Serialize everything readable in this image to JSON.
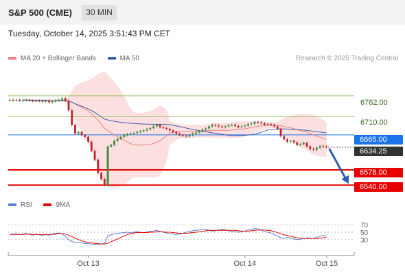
{
  "header": {
    "title": "S&P 500 (CME)",
    "timeframe_label": "30 MIN"
  },
  "timestamp": "Tuesday, October 14, 2025 3:51:43 PM CET",
  "legend": {
    "bollinger_label": "MA 20 + Bollinger Bands",
    "ma50_label": "MA 50",
    "credit": "Research © 2025 Trading Central"
  },
  "colors": {
    "bollinger": "#f08080",
    "band_fill": "#fbd9d9",
    "ma50": "#3b5ea8",
    "resistance": "#9bc46a",
    "support": "#e60000",
    "pivot": "#1a73e8",
    "current": "#333333",
    "rsi": "#5b7fd6",
    "rsi_ma": "#e60000"
  },
  "levels": {
    "resistance_2": "6762.00",
    "resistance_1": "6710.00",
    "pivot": "6665.00",
    "current": "6634.25",
    "support_1": "6578.00",
    "support_2": "6540.00"
  },
  "rsi_legend": {
    "rsi_label": "RSI",
    "ma_label": "9MA"
  },
  "rsi_axis": [
    "70",
    "50",
    "30"
  ],
  "x_axis": [
    "Oct 13",
    "Oct 14",
    "Oct 15"
  ],
  "chart_data": {
    "type": "candlestick",
    "ylim": [
      6520,
      6830
    ],
    "reference_lines": [
      6762,
      6710,
      6665,
      6578,
      6540
    ],
    "current_price": 6634.25,
    "close": [
      6752,
      6751,
      6752,
      6750,
      6751,
      6752,
      6750,
      6749,
      6750,
      6749,
      6748,
      6750,
      6746,
      6748,
      6751,
      6752,
      6756,
      6750,
      6726,
      6690,
      6668,
      6672,
      6664,
      6660,
      6648,
      6625,
      6603,
      6570,
      6555,
      6540,
      6636,
      6640,
      6650,
      6655,
      6660,
      6664,
      6667,
      6668,
      6670,
      6672,
      6674,
      6676,
      6679,
      6682,
      6686,
      6690,
      6684,
      6682,
      6680,
      6676,
      6672,
      6668,
      6665,
      6663,
      6661,
      6664,
      6668,
      6671,
      6674,
      6678,
      6681,
      6686,
      6690,
      6688,
      6686,
      6684,
      6686,
      6689,
      6690,
      6687,
      6684,
      6686,
      6688,
      6692,
      6693,
      6697,
      6696,
      6694,
      6690,
      6692,
      6690,
      6686,
      6680,
      6662,
      6654,
      6648,
      6650,
      6646,
      6640,
      6642,
      6645,
      6636,
      6630,
      6628,
      6633,
      6637,
      6636,
      6634
    ],
    "rsi": [
      45,
      44,
      46,
      43,
      45,
      47,
      44,
      42,
      45,
      43,
      41,
      44,
      42,
      45,
      47,
      48,
      46,
      38,
      30,
      25,
      22,
      23,
      21,
      20,
      19,
      18,
      17,
      16,
      18,
      20,
      40,
      43,
      46,
      47,
      48,
      49,
      50,
      49,
      50,
      52,
      50,
      48,
      51,
      52,
      53,
      55,
      52,
      50,
      48,
      46,
      45,
      44,
      45,
      47,
      50,
      52,
      54,
      55,
      56,
      58,
      57,
      55,
      53,
      54,
      56,
      58,
      57,
      54,
      52,
      51,
      50,
      51,
      53,
      56,
      58,
      60,
      59,
      56,
      52,
      50,
      48,
      44,
      40,
      35,
      33,
      36,
      34,
      32,
      30,
      31,
      33,
      35,
      34,
      33,
      36,
      39,
      41,
      40
    ],
    "rsi_ma": [
      44,
      44,
      44,
      44,
      44,
      45,
      45,
      44,
      44,
      44,
      44,
      44,
      44,
      44,
      45,
      46,
      46,
      45,
      42,
      38,
      34,
      30,
      27,
      24,
      22,
      21,
      20,
      19,
      18,
      18,
      20,
      24,
      28,
      32,
      36,
      40,
      44,
      46,
      48,
      49,
      49,
      49,
      49,
      50,
      50,
      51,
      51,
      51,
      50,
      50,
      49,
      48,
      47,
      47,
      47,
      48,
      49,
      50,
      51,
      52,
      54,
      55,
      55,
      55,
      55,
      55,
      55,
      55,
      55,
      55,
      54,
      53,
      53,
      53,
      54,
      55,
      56,
      56,
      56,
      55,
      54,
      52,
      49,
      46,
      43,
      41,
      39,
      37,
      35,
      34,
      33,
      33,
      33,
      33,
      33,
      34,
      35,
      36
    ],
    "rsi_range": [
      0,
      100
    ],
    "x_ticks": [
      "Oct 13",
      "Oct 14",
      "Oct 15"
    ]
  }
}
